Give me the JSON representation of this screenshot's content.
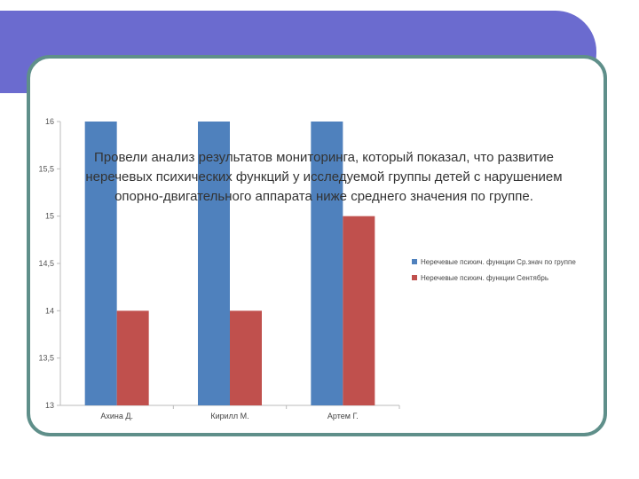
{
  "slide": {
    "text": "Провели анализ результатов мониторинга, который показал, что развитие неречевых психических функций у исследуемой группы детей с нарушением опорно-двигательного аппарата ниже среднего значения по группе."
  },
  "colors": {
    "header": "#6b6bcf",
    "frame": "#5f8f8a",
    "series1": "#4f81bd",
    "series2": "#c0504d"
  },
  "chart_data": {
    "type": "bar",
    "categories": [
      "Ахина Д.",
      "Кирилл М.",
      "Артем Г."
    ],
    "series": [
      {
        "name": "Неречевые психич. функции Ср.знач по группе",
        "values": [
          16,
          16,
          16
        ],
        "color": "#4f81bd"
      },
      {
        "name": "Неречевые психич. функции Сентябрь",
        "values": [
          14,
          14,
          15
        ],
        "color": "#c0504d"
      }
    ],
    "yticks": [
      "16",
      "15,5",
      "15",
      "14,5",
      "14",
      "13,5",
      "13"
    ],
    "ylim": [
      13,
      16
    ],
    "grid": false,
    "legend": "right"
  }
}
